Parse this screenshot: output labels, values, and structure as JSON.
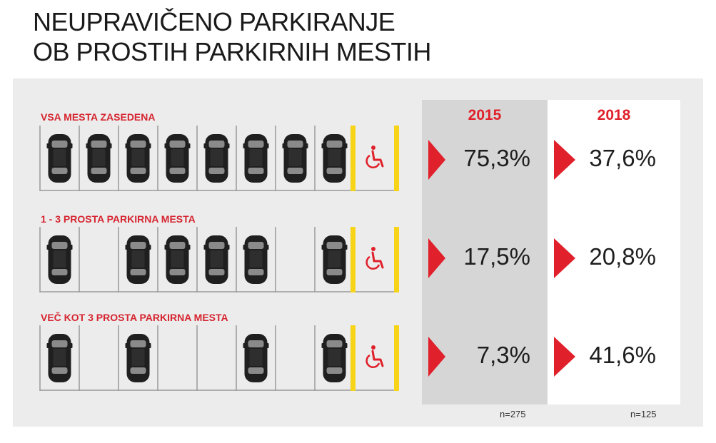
{
  "title": {
    "line1": "NEUPRAVIČENO PARKIRANJE",
    "line2": "OB PROSTIH PARKIRNIH MESTIH"
  },
  "colors": {
    "accent": "#e0202a",
    "car": "#1f1f1f",
    "line": "#9a9a9a",
    "handicap_line": "#f7d417",
    "column_2015": "#d6d6d6",
    "panel": "#ececec"
  },
  "icons": {
    "car": "car-icon",
    "handicap": "wheelchair-icon",
    "arrow": "red-triangle-arrow-icon"
  },
  "chart_data": {
    "type": "table",
    "columns": [
      "2015",
      "2018"
    ],
    "rows": [
      {
        "label": "VSA MESTA ZASEDENA",
        "values": [
          "75,3%",
          "37,6%"
        ],
        "occupied": [
          1,
          1,
          1,
          1,
          1,
          1,
          1,
          1
        ]
      },
      {
        "label": "1 - 3 PROSTA PARKIRNA MESTA",
        "values": [
          "17,5%",
          "20,8%"
        ],
        "occupied": [
          1,
          0,
          1,
          1,
          1,
          1,
          0,
          1
        ]
      },
      {
        "label": "VEČ KOT 3 PROSTA PARKIRNA MESTA",
        "values": [
          "7,3%",
          "41,6%"
        ],
        "occupied": [
          1,
          0,
          1,
          0,
          0,
          1,
          0,
          1
        ]
      }
    ],
    "sample_sizes": [
      "n=275",
      "n=125"
    ]
  }
}
